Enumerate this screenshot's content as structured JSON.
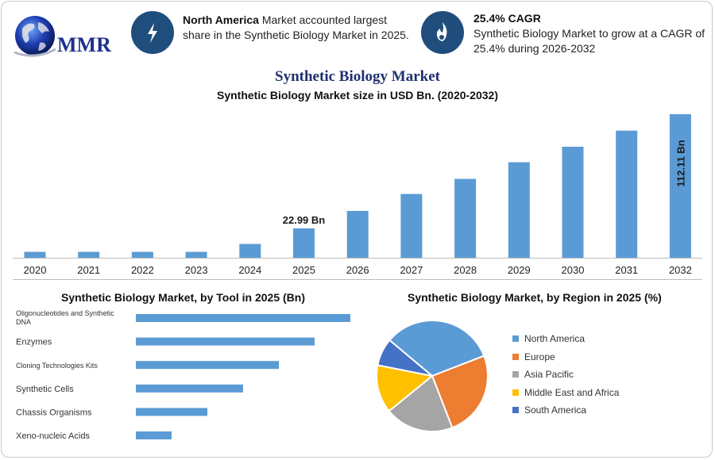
{
  "logo": {
    "text": "MMR",
    "icon": "globe-icon"
  },
  "highlights": [
    {
      "icon": "lightning-icon",
      "bold": "North America",
      "rest": " Market accounted largest share in the Synthetic Biology Market in 2025."
    },
    {
      "icon": "flame-icon",
      "bold": "25.4% CAGR",
      "rest": "Synthetic Biology Market to grow at a CAGR of 25.4% during 2026-2032"
    }
  ],
  "colors": {
    "bar": "#5b9bd5",
    "icon_bg": "#1f4e7d",
    "title": "#1f2f6f",
    "north_america": "#5b9bd5",
    "europe": "#ed7d31",
    "asia_pacific": "#a5a5a5",
    "mea": "#ffc000",
    "south_america": "#4472c4"
  },
  "chart_data": [
    {
      "type": "bar",
      "title": "Synthetic Biology Market",
      "subtitle": "Synthetic Biology Market size in USD Bn. (2020-2032)",
      "categories": [
        "2020",
        "2021",
        "2022",
        "2023",
        "2024",
        "2025",
        "2026",
        "2027",
        "2028",
        "2029",
        "2030",
        "2031",
        "2032"
      ],
      "values": [
        4.6,
        4.6,
        4.6,
        4.6,
        10.8,
        22.99,
        36.6,
        49.8,
        61.6,
        74.6,
        86.7,
        99.3,
        112.11
      ],
      "data_labels": [
        {
          "category": "2025",
          "text": "22.99 Bn"
        },
        {
          "category": "2032",
          "text": "112.11 Bn"
        }
      ],
      "ylim": [
        0,
        112.11
      ],
      "grid": false,
      "legend": "none"
    },
    {
      "type": "bar",
      "orientation": "horizontal",
      "title": "Synthetic Biology Market, by Tool in 2025 (Bn)",
      "categories": [
        "Oligonucleotides and Synthetic DNA",
        "Enzymes",
        "Cloning Technologies Kits",
        "Synthetic Cells",
        "Chassis Organisms",
        "Xeno-nucleic Acids"
      ],
      "values": [
        6,
        5,
        4,
        3,
        2,
        1
      ],
      "grid": false,
      "legend": "none"
    },
    {
      "type": "pie",
      "title": "Synthetic Biology Market, by Region in 2025 (%)",
      "categories": [
        "North America",
        "Europe",
        "Asia Pacific",
        "Middle East and Africa",
        "South America"
      ],
      "values": [
        33,
        25,
        20,
        14,
        8
      ],
      "legend": "right"
    }
  ]
}
